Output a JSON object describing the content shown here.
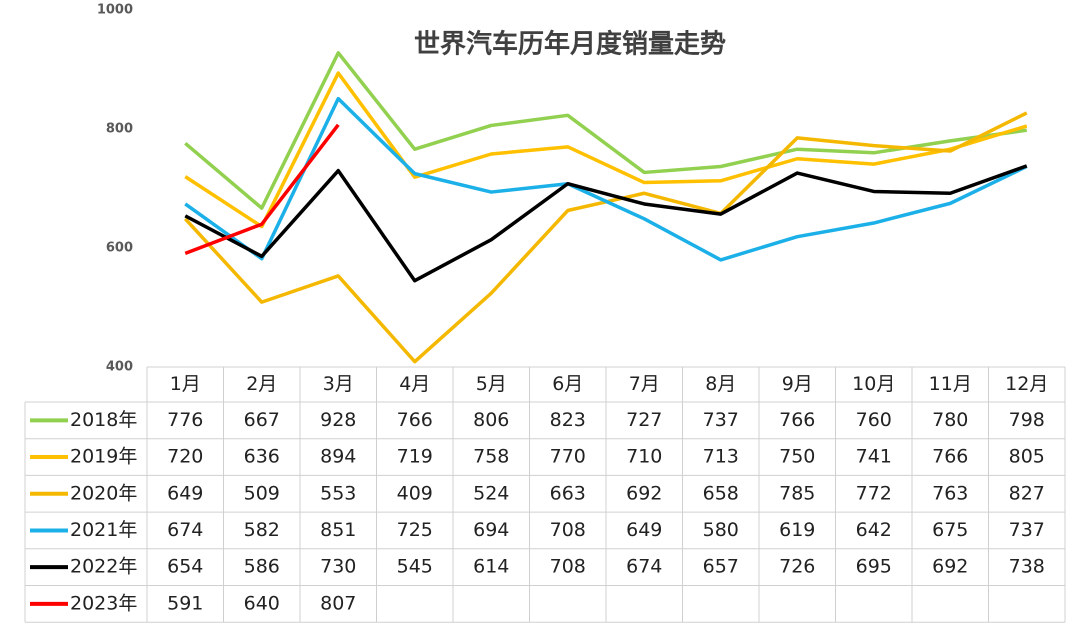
{
  "chart_data": {
    "type": "line",
    "title": "世界汽车历年月度销量走势",
    "categories": [
      "1月",
      "2月",
      "3月",
      "4月",
      "5月",
      "6月",
      "7月",
      "8月",
      "9月",
      "10月",
      "11月",
      "12月"
    ],
    "series": [
      {
        "name": "2018年",
        "color": "#92d050",
        "values": [
          776,
          667,
          928,
          766,
          806,
          823,
          727,
          737,
          766,
          760,
          780,
          798
        ]
      },
      {
        "name": "2019年",
        "color": "#ffc000",
        "values": [
          720,
          636,
          894,
          719,
          758,
          770,
          710,
          713,
          750,
          741,
          766,
          805
        ]
      },
      {
        "name": "2020年",
        "color": "#f5b800",
        "values": [
          649,
          509,
          553,
          409,
          524,
          663,
          692,
          658,
          785,
          772,
          763,
          827
        ]
      },
      {
        "name": "2021年",
        "color": "#1cb0e8",
        "values": [
          674,
          582,
          851,
          725,
          694,
          708,
          649,
          580,
          619,
          642,
          675,
          737
        ]
      },
      {
        "name": "2022年",
        "color": "#000000",
        "values": [
          654,
          586,
          730,
          545,
          614,
          708,
          674,
          657,
          726,
          695,
          692,
          738
        ]
      },
      {
        "name": "2023年",
        "color": "#ff0000",
        "values": [
          591,
          640,
          807,
          null,
          null,
          null,
          null,
          null,
          null,
          null,
          null,
          null
        ]
      }
    ],
    "ylim": [
      400,
      1000
    ],
    "yticks": [
      400,
      600,
      800,
      1000
    ]
  }
}
